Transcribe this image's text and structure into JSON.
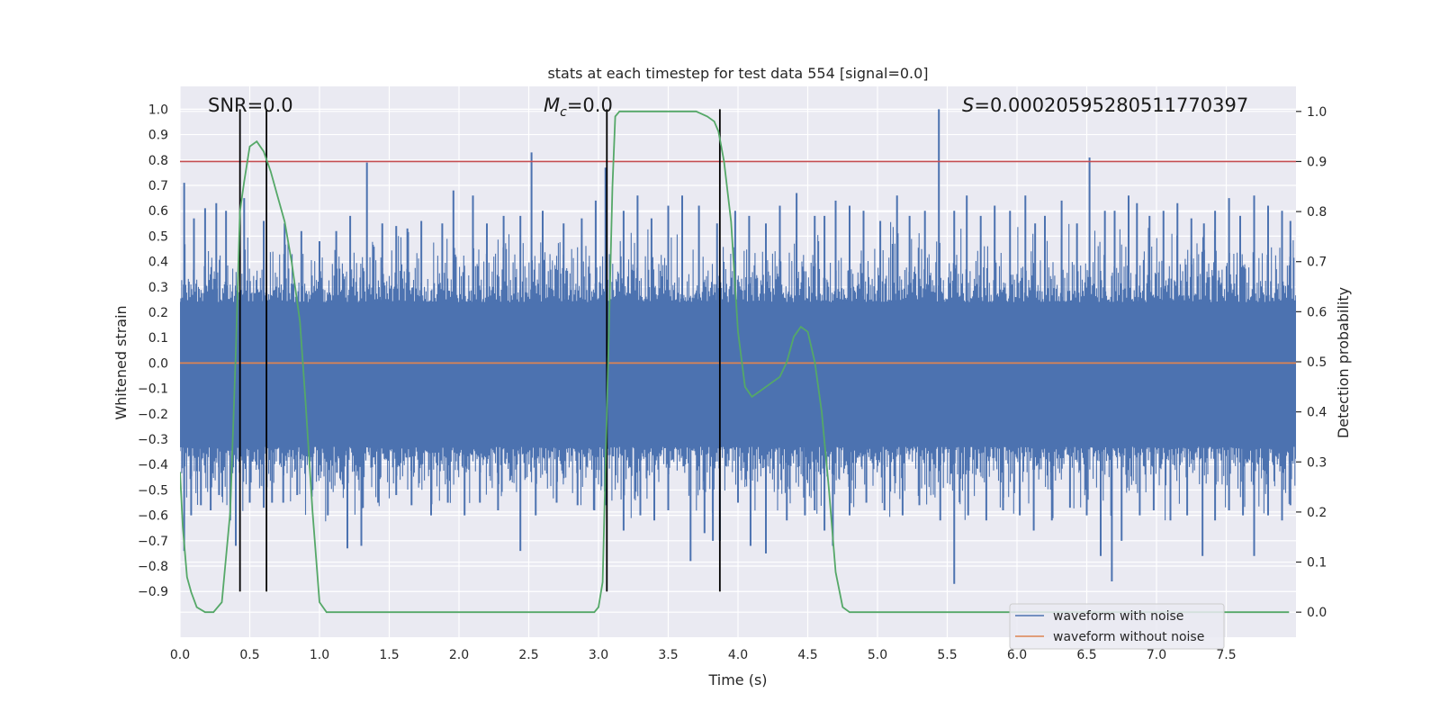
{
  "chart_data": {
    "type": "line",
    "title": "stats at each timestep for test data 554 [signal=0.0]",
    "xlabel": "Time (s)",
    "ylabel": "Whitened strain",
    "y2label": "Detection probability",
    "xlim": [
      0.0,
      8.0
    ],
    "ylim": [
      -1.08,
      1.09
    ],
    "y2lim": [
      -0.05,
      1.05
    ],
    "xticks": [
      "0.0",
      "0.5",
      "1.0",
      "1.5",
      "2.0",
      "2.5",
      "3.0",
      "3.5",
      "4.0",
      "4.5",
      "5.0",
      "5.5",
      "6.0",
      "6.5",
      "7.0",
      "7.5"
    ],
    "yticks": [
      "1.0",
      "0.9",
      "0.8",
      "0.7",
      "0.6",
      "0.5",
      "0.4",
      "0.3",
      "0.2",
      "0.1",
      "0.0",
      "−0.1",
      "−0.2",
      "−0.3",
      "−0.4",
      "−0.5",
      "−0.6",
      "−0.7",
      "−0.8",
      "−0.9"
    ],
    "y2ticks": [
      "1.0",
      "0.9",
      "0.8",
      "0.7",
      "0.6",
      "0.5",
      "0.4",
      "0.3",
      "0.2",
      "0.1",
      "0.0"
    ],
    "annotations": {
      "snr": "SNR=0.0",
      "mc_symbol": "M",
      "mc_sub": "c",
      "mc_value": "=0.0",
      "s_symbol": "S",
      "s_value": "=0.00020595280511770397"
    },
    "threshold": {
      "axis": "y2",
      "value": 0.9,
      "color": "#c44e52"
    },
    "vlines": [
      {
        "x": 0.43,
        "y_bottom": -0.9,
        "y_top": 1.0
      },
      {
        "x": 0.62,
        "y_bottom": -0.9,
        "y_top": 1.0
      },
      {
        "x": 3.06,
        "y_bottom": -0.9,
        "y_top": 1.0
      },
      {
        "x": 3.87,
        "y_bottom": -0.9,
        "y_top": 1.0
      }
    ],
    "series": [
      {
        "name": "waveform with noise",
        "color": "#4c72b0",
        "axis": "y",
        "band": {
          "lower": -0.33,
          "upper": 0.24
        },
        "spikes_up": [
          [
            0.03,
            0.71
          ],
          [
            0.1,
            0.57
          ],
          [
            0.18,
            0.61
          ],
          [
            0.26,
            0.63
          ],
          [
            0.33,
            0.6
          ],
          [
            0.46,
            0.65
          ],
          [
            0.6,
            0.56
          ],
          [
            0.75,
            0.55
          ],
          [
            0.87,
            0.52
          ],
          [
            1.0,
            0.48
          ],
          [
            1.12,
            0.52
          ],
          [
            1.22,
            0.58
          ],
          [
            1.34,
            0.79
          ],
          [
            1.45,
            0.55
          ],
          [
            1.55,
            0.54
          ],
          [
            1.63,
            0.53
          ],
          [
            1.73,
            0.56
          ],
          [
            1.88,
            0.55
          ],
          [
            1.96,
            0.68
          ],
          [
            2.1,
            0.66
          ],
          [
            2.2,
            0.55
          ],
          [
            2.32,
            0.58
          ],
          [
            2.44,
            0.58
          ],
          [
            2.52,
            0.83
          ],
          [
            2.6,
            0.6
          ],
          [
            2.75,
            0.55
          ],
          [
            2.88,
            0.57
          ],
          [
            2.98,
            0.64
          ],
          [
            3.05,
            0.77
          ],
          [
            3.18,
            0.6
          ],
          [
            3.28,
            0.66
          ],
          [
            3.38,
            0.57
          ],
          [
            3.5,
            0.62
          ],
          [
            3.6,
            0.66
          ],
          [
            3.72,
            0.62
          ],
          [
            3.85,
            0.55
          ],
          [
            3.98,
            0.6
          ],
          [
            4.08,
            0.58
          ],
          [
            4.2,
            0.55
          ],
          [
            4.3,
            0.62
          ],
          [
            4.42,
            0.67
          ],
          [
            4.55,
            0.58
          ],
          [
            4.62,
            0.58
          ],
          [
            4.7,
            0.64
          ],
          [
            4.8,
            0.62
          ],
          [
            4.9,
            0.6
          ],
          [
            5.02,
            0.56
          ],
          [
            5.14,
            0.66
          ],
          [
            5.23,
            0.58
          ],
          [
            5.34,
            0.6
          ],
          [
            5.44,
            1.0
          ],
          [
            5.55,
            0.6
          ],
          [
            5.64,
            0.66
          ],
          [
            5.74,
            0.58
          ],
          [
            5.84,
            0.62
          ],
          [
            5.95,
            0.6
          ],
          [
            6.06,
            0.66
          ],
          [
            6.13,
            0.55
          ],
          [
            6.2,
            0.58
          ],
          [
            6.32,
            0.64
          ],
          [
            6.43,
            0.55
          ],
          [
            6.52,
            0.81
          ],
          [
            6.63,
            0.6
          ],
          [
            6.7,
            0.6
          ],
          [
            6.8,
            0.66
          ],
          [
            6.86,
            0.63
          ],
          [
            6.95,
            0.58
          ],
          [
            7.05,
            0.6
          ],
          [
            7.15,
            0.63
          ],
          [
            7.25,
            0.57
          ],
          [
            7.34,
            0.55
          ],
          [
            7.42,
            0.6
          ],
          [
            7.52,
            0.65
          ],
          [
            7.6,
            0.58
          ],
          [
            7.7,
            0.66
          ],
          [
            7.8,
            0.62
          ],
          [
            7.9,
            0.6
          ],
          [
            7.96,
            0.56
          ]
        ],
        "spikes_down": [
          [
            0.03,
            -0.74
          ],
          [
            0.08,
            -0.6
          ],
          [
            0.15,
            -0.56
          ],
          [
            0.22,
            -0.58
          ],
          [
            0.28,
            -0.52
          ],
          [
            0.36,
            -0.62
          ],
          [
            0.4,
            -0.72
          ],
          [
            0.5,
            -0.55
          ],
          [
            0.6,
            -0.57
          ],
          [
            0.66,
            -0.55
          ],
          [
            0.74,
            -0.55
          ],
          [
            0.84,
            -0.52
          ],
          [
            0.95,
            -0.5
          ],
          [
            1.06,
            -0.6
          ],
          [
            1.2,
            -0.73
          ],
          [
            1.3,
            -0.72
          ],
          [
            1.42,
            -0.55
          ],
          [
            1.55,
            -0.52
          ],
          [
            1.66,
            -0.56
          ],
          [
            1.8,
            -0.6
          ],
          [
            1.92,
            -0.55
          ],
          [
            2.04,
            -0.6
          ],
          [
            2.15,
            -0.55
          ],
          [
            2.28,
            -0.58
          ],
          [
            2.44,
            -0.74
          ],
          [
            2.55,
            -0.6
          ],
          [
            2.7,
            -0.55
          ],
          [
            2.85,
            -0.56
          ],
          [
            2.97,
            -0.58
          ],
          [
            3.05,
            -0.56
          ],
          [
            3.18,
            -0.66
          ],
          [
            3.3,
            -0.6
          ],
          [
            3.4,
            -0.62
          ],
          [
            3.5,
            -0.58
          ],
          [
            3.66,
            -0.78
          ],
          [
            3.76,
            -0.67
          ],
          [
            3.82,
            -0.7
          ],
          [
            3.87,
            -0.7
          ],
          [
            4.0,
            -0.55
          ],
          [
            4.09,
            -0.72
          ],
          [
            4.2,
            -0.75
          ],
          [
            4.35,
            -0.62
          ],
          [
            4.48,
            -0.6
          ],
          [
            4.55,
            -0.58
          ],
          [
            4.62,
            -0.66
          ],
          [
            4.68,
            -0.72
          ],
          [
            4.8,
            -0.6
          ],
          [
            4.92,
            -0.55
          ],
          [
            5.05,
            -0.58
          ],
          [
            5.18,
            -0.6
          ],
          [
            5.3,
            -0.56
          ],
          [
            5.45,
            -0.62
          ],
          [
            5.55,
            -0.87
          ],
          [
            5.65,
            -0.6
          ],
          [
            5.78,
            -0.62
          ],
          [
            5.9,
            -0.58
          ],
          [
            6.02,
            -0.6
          ],
          [
            6.12,
            -0.66
          ],
          [
            6.25,
            -0.62
          ],
          [
            6.38,
            -0.57
          ],
          [
            6.5,
            -0.6
          ],
          [
            6.6,
            -0.76
          ],
          [
            6.68,
            -0.86
          ],
          [
            6.75,
            -0.7
          ],
          [
            6.88,
            -0.6
          ],
          [
            6.98,
            -0.58
          ],
          [
            7.1,
            -0.62
          ],
          [
            7.22,
            -0.6
          ],
          [
            7.33,
            -0.76
          ],
          [
            7.42,
            -0.62
          ],
          [
            7.52,
            -0.58
          ],
          [
            7.62,
            -0.6
          ],
          [
            7.7,
            -0.76
          ],
          [
            7.8,
            -0.6
          ],
          [
            7.9,
            -0.62
          ],
          [
            7.96,
            -0.56
          ]
        ]
      },
      {
        "name": "waveform without noise",
        "color": "#dd8452",
        "axis": "y",
        "x": [
          0.0,
          8.0
        ],
        "y": [
          0.0,
          0.0
        ]
      },
      {
        "name": "detection probability",
        "color": "#55a868",
        "axis": "y2",
        "x": [
          0.0,
          0.02,
          0.05,
          0.08,
          0.12,
          0.18,
          0.24,
          0.3,
          0.36,
          0.4,
          0.43,
          0.46,
          0.5,
          0.55,
          0.6,
          0.65,
          0.7,
          0.75,
          0.8,
          0.86,
          0.9,
          0.95,
          1.0,
          1.05,
          1.1,
          1.2,
          1.5,
          2.0,
          2.5,
          2.9,
          2.97,
          3.0,
          3.03,
          3.06,
          3.1,
          3.12,
          3.15,
          3.2,
          3.3,
          3.5,
          3.7,
          3.78,
          3.83,
          3.86,
          3.9,
          3.95,
          4.0,
          4.05,
          4.1,
          4.15,
          4.2,
          4.3,
          4.35,
          4.4,
          4.45,
          4.5,
          4.55,
          4.6,
          4.65,
          4.7,
          4.75,
          4.8,
          4.85,
          4.9,
          5.0,
          5.5,
          6.0,
          6.5,
          7.0,
          7.5,
          7.95
        ],
        "y": [
          0.28,
          0.17,
          0.07,
          0.04,
          0.01,
          0.0,
          0.0,
          0.02,
          0.2,
          0.52,
          0.8,
          0.86,
          0.93,
          0.94,
          0.92,
          0.88,
          0.83,
          0.78,
          0.7,
          0.58,
          0.42,
          0.2,
          0.02,
          0.0,
          0.0,
          0.0,
          0.0,
          0.0,
          0.0,
          0.0,
          0.0,
          0.01,
          0.06,
          0.4,
          0.85,
          0.99,
          1.0,
          1.0,
          1.0,
          1.0,
          1.0,
          0.99,
          0.98,
          0.96,
          0.9,
          0.78,
          0.56,
          0.45,
          0.43,
          0.44,
          0.45,
          0.47,
          0.5,
          0.55,
          0.57,
          0.56,
          0.5,
          0.4,
          0.25,
          0.08,
          0.01,
          0.0,
          0.0,
          0.0,
          0.0,
          0.0,
          0.0,
          0.0,
          0.0,
          0.0,
          0.0
        ]
      }
    ],
    "legend": {
      "placement": "bottom-right",
      "entries": [
        {
          "label": "waveform with noise",
          "color": "#4c72b0"
        },
        {
          "label": "waveform without noise",
          "color": "#dd8452"
        }
      ]
    },
    "grid": true,
    "background": "#eaeaf2"
  }
}
